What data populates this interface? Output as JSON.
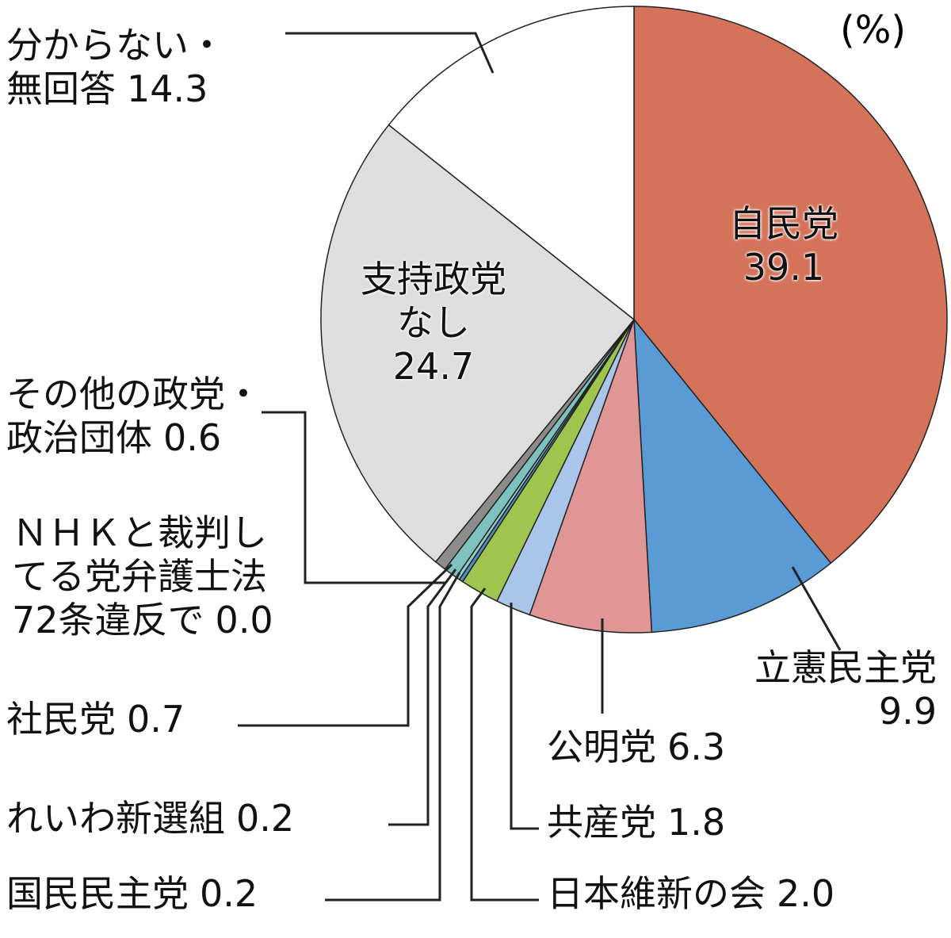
{
  "chart_data": {
    "type": "pie",
    "unit": "(%)",
    "categories": [
      "自民党",
      "立憲民主党",
      "公明党",
      "共産党",
      "日本維新の会",
      "国民民主党",
      "れいわ新選組",
      "社民党",
      "ＮＨＫと裁判し\nてる党弁護士法\n72条違反で",
      "その他の政党・\n政治団体",
      "支持政党\nなし",
      "分からない・\n無回答"
    ],
    "values": [
      39.1,
      9.9,
      6.3,
      1.8,
      2.0,
      0.2,
      0.2,
      0.7,
      0.0,
      0.6,
      24.7,
      14.3
    ],
    "value_labels": [
      "39.1",
      "9.9",
      "6.3",
      "1.8",
      "2.0",
      "0.2",
      "0.2",
      "0.7",
      "0.0",
      "0.6",
      "24.7",
      "14.3"
    ],
    "colors": [
      "#d4735a",
      "#5b9bd5",
      "#df9694",
      "#a9c6ea",
      "#9fc54e",
      "#4f8fbf",
      "#8fcfcb",
      "#7ec2c0",
      "#ffffff",
      "#8c8c8c",
      "#dedede",
      "#ffffff"
    ]
  }
}
